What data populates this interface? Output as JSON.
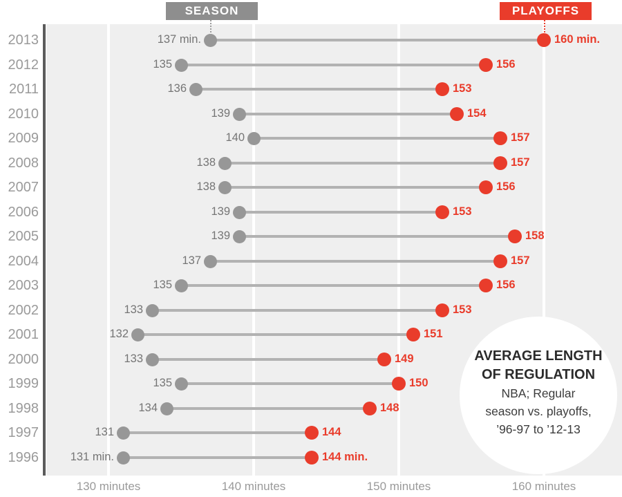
{
  "legend": {
    "season": "SEASON",
    "playoffs": "PLAYOFFS"
  },
  "annotation": {
    "title_lines": [
      "AVERAGE LENGTH",
      "OF REGULATION"
    ],
    "body_lines": [
      "NBA; Regular",
      "season vs. playoffs,",
      "’96-97 to ’12-13"
    ]
  },
  "colors": {
    "playoffs_red": "#e93c2b",
    "season_gray": "#979797",
    "connector_gray": "#b2b2b2",
    "plot_background": "#efefef",
    "gridline_white": "#ffffff",
    "axis_dark_gray": "#5c5c5c",
    "year_label_gray": "#9a9a9a",
    "season_value_gray": "#757575",
    "season_legend_box_gray": "#8e8e8e"
  },
  "chart_data": {
    "type": "dumbbell",
    "title": "AVERAGE LENGTH OF REGULATION",
    "subtitle": "NBA; Regular season vs. playoffs, '96-97 to '12-13",
    "series_names": [
      "SEASON",
      "PLAYOFFS"
    ],
    "xlabel_unit": "minutes",
    "x_axis": {
      "ticks": [
        130,
        140,
        150,
        160
      ],
      "tick_labels": [
        "130 minutes",
        "140 minutes",
        "150 minutes",
        "160 minutes"
      ],
      "range_shown": [
        125.7,
        165.4
      ],
      "grid": true
    },
    "rows": [
      {
        "year": "2013",
        "season": 137,
        "playoffs": 160,
        "season_label": "137 min.",
        "playoffs_label": "160 min."
      },
      {
        "year": "2012",
        "season": 135,
        "playoffs": 156,
        "season_label": "135",
        "playoffs_label": "156"
      },
      {
        "year": "2011",
        "season": 136,
        "playoffs": 153,
        "season_label": "136",
        "playoffs_label": "153"
      },
      {
        "year": "2010",
        "season": 139,
        "playoffs": 154,
        "season_label": "139",
        "playoffs_label": "154"
      },
      {
        "year": "2009",
        "season": 140,
        "playoffs": 157,
        "season_label": "140",
        "playoffs_label": "157"
      },
      {
        "year": "2008",
        "season": 138,
        "playoffs": 157,
        "season_label": "138",
        "playoffs_label": "157"
      },
      {
        "year": "2007",
        "season": 138,
        "playoffs": 156,
        "season_label": "138",
        "playoffs_label": "156"
      },
      {
        "year": "2006",
        "season": 139,
        "playoffs": 153,
        "season_label": "139",
        "playoffs_label": "153"
      },
      {
        "year": "2005",
        "season": 139,
        "playoffs": 158,
        "season_label": "139",
        "playoffs_label": "158"
      },
      {
        "year": "2004",
        "season": 137,
        "playoffs": 157,
        "season_label": "137",
        "playoffs_label": "157"
      },
      {
        "year": "2003",
        "season": 135,
        "playoffs": 156,
        "season_label": "135",
        "playoffs_label": "156"
      },
      {
        "year": "2002",
        "season": 133,
        "playoffs": 153,
        "season_label": "133",
        "playoffs_label": "153"
      },
      {
        "year": "2001",
        "season": 132,
        "playoffs": 151,
        "season_label": "132",
        "playoffs_label": "151"
      },
      {
        "year": "2000",
        "season": 133,
        "playoffs": 149,
        "season_label": "133",
        "playoffs_label": "149"
      },
      {
        "year": "1999",
        "season": 135,
        "playoffs": 150,
        "season_label": "135",
        "playoffs_label": "150"
      },
      {
        "year": "1998",
        "season": 134,
        "playoffs": 148,
        "season_label": "134",
        "playoffs_label": "148"
      },
      {
        "year": "1997",
        "season": 131,
        "playoffs": 144,
        "season_label": "131",
        "playoffs_label": "144"
      },
      {
        "year": "1996",
        "season": 131,
        "playoffs": 144,
        "season_label": "131 min.",
        "playoffs_label": "144 min."
      }
    ]
  }
}
